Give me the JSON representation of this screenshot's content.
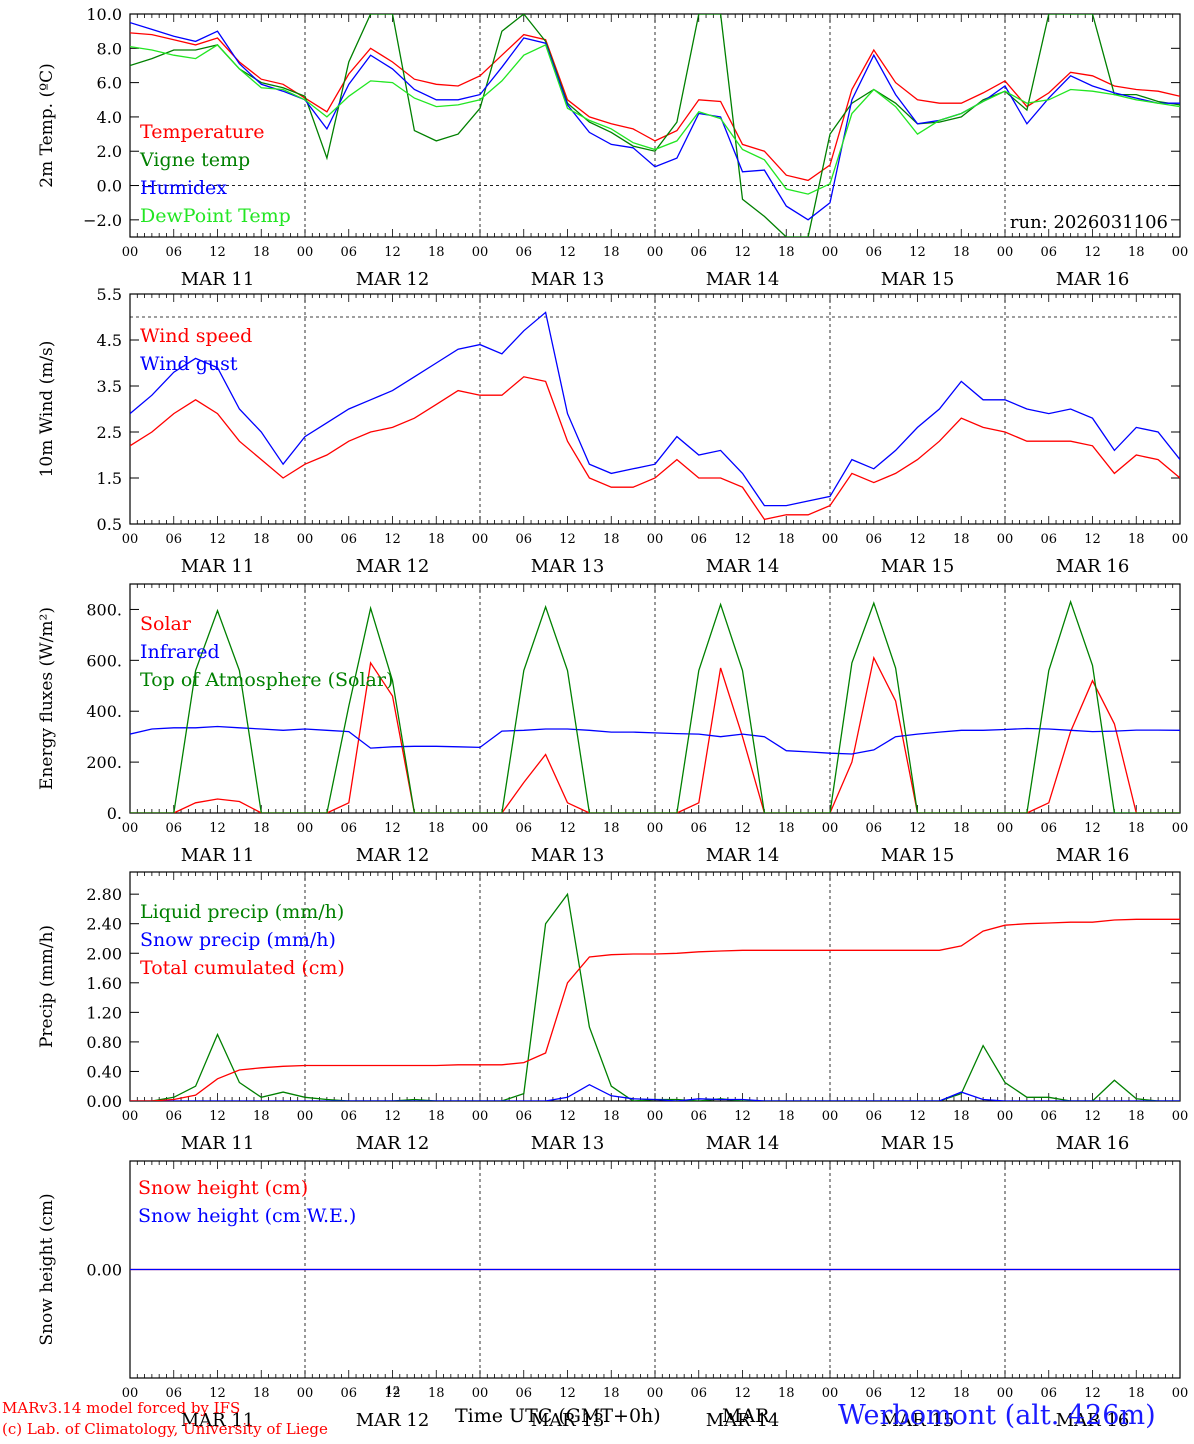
{
  "run_label": "run: 2026031106",
  "footer": {
    "credit_line1": "MARv3.14 model forced by IFS",
    "credit_line2": "(c) Lab. of Climatology, University of Liege",
    "small_hour": "12",
    "time_axis_label": "Time UTC (GMT+0h)",
    "month_label": "MAR",
    "station": "Werbomont (alt. 426m)"
  },
  "x_axis": {
    "hours": [
      0,
      144
    ],
    "tick_labels": [
      "00",
      "06",
      "12",
      "18"
    ],
    "day_labels": [
      "MAR 11",
      "MAR 12",
      "MAR 13",
      "MAR 14",
      "MAR 15",
      "MAR 16"
    ]
  },
  "chart_data": [
    {
      "id": "temperature",
      "type": "line",
      "ylabel": "2m Temp. (ºC)",
      "ylim": [
        -3.0,
        10.0
      ],
      "yticks": [
        -2.0,
        0.0,
        2.0,
        4.0,
        6.0,
        8.0,
        10.0
      ],
      "ytick_labels": [
        "−2.0",
        "0.0",
        "2.0",
        "4.0",
        "6.0",
        "8.0",
        "10.0"
      ],
      "hline": 0.0,
      "hline_label": "",
      "x": [
        0,
        3,
        6,
        9,
        12,
        15,
        18,
        21,
        24,
        27,
        30,
        33,
        36,
        39,
        42,
        45,
        48,
        51,
        54,
        57,
        60,
        63,
        66,
        69,
        72,
        75,
        78,
        81,
        84,
        87,
        90,
        93,
        96,
        99,
        102,
        105,
        108,
        111,
        114,
        117,
        120,
        123,
        126,
        129,
        132,
        135,
        138,
        141,
        144
      ],
      "series": [
        {
          "name": "Temperature",
          "color": "#ff0000",
          "values": [
            8.9,
            8.8,
            8.5,
            8.2,
            8.6,
            7.2,
            6.2,
            5.9,
            5.1,
            4.3,
            6.5,
            8.0,
            7.2,
            6.2,
            5.9,
            5.8,
            6.4,
            7.6,
            8.8,
            8.5,
            5.0,
            4.0,
            3.6,
            3.3,
            2.6,
            3.2,
            5.0,
            4.9,
            2.4,
            2.0,
            0.6,
            0.3,
            1.2,
            5.6,
            7.9,
            6.0,
            5.0,
            4.8,
            4.8,
            5.4,
            6.1,
            4.6,
            5.4,
            6.6,
            6.4,
            5.8,
            5.6,
            5.5,
            5.2
          ]
        },
        {
          "name": "Vigne temp",
          "color": "#008000",
          "values": [
            7.0,
            7.4,
            7.9,
            7.9,
            8.2,
            6.8,
            6.0,
            5.7,
            5.2,
            1.6,
            7.2,
            10.0,
            10.0,
            3.2,
            2.6,
            3.0,
            4.5,
            9.0,
            10.0,
            8.4,
            4.8,
            3.7,
            3.1,
            2.3,
            2.0,
            3.7,
            10.0,
            10.0,
            -0.8,
            -1.8,
            -3.0,
            -3.0,
            3.0,
            4.8,
            5.6,
            4.8,
            3.6,
            3.7,
            4.0,
            5.0,
            5.5,
            4.4,
            10.0,
            10.0,
            10.0,
            5.3,
            5.3,
            4.9,
            4.7
          ]
        },
        {
          "name": "Humidex",
          "color": "#0000ff",
          "values": [
            9.5,
            9.1,
            8.7,
            8.4,
            9.0,
            7.1,
            5.9,
            5.5,
            5.0,
            3.3,
            5.9,
            7.6,
            6.8,
            5.6,
            5.0,
            5.0,
            5.3,
            6.9,
            8.6,
            8.3,
            4.7,
            3.1,
            2.4,
            2.2,
            1.1,
            1.6,
            4.2,
            4.0,
            0.8,
            0.9,
            -1.2,
            -2.0,
            -1.0,
            5.0,
            7.6,
            5.3,
            3.6,
            3.8,
            4.2,
            4.9,
            5.8,
            3.6,
            5.1,
            6.4,
            5.8,
            5.4,
            5.1,
            4.8,
            4.8
          ]
        },
        {
          "name": "DewPoint Temp",
          "color": "#22e622",
          "values": [
            8.1,
            7.9,
            7.6,
            7.4,
            8.2,
            6.8,
            5.7,
            5.6,
            5.0,
            4.0,
            5.2,
            6.1,
            6.0,
            5.1,
            4.6,
            4.7,
            5.0,
            6.1,
            7.6,
            8.2,
            4.5,
            3.8,
            3.3,
            2.5,
            2.1,
            2.6,
            4.3,
            3.9,
            2.1,
            1.5,
            -0.2,
            -0.5,
            0.1,
            4.2,
            5.6,
            4.6,
            3.0,
            3.8,
            4.2,
            4.9,
            5.5,
            4.8,
            5.0,
            5.6,
            5.5,
            5.3,
            5.0,
            4.8,
            4.6
          ]
        }
      ]
    },
    {
      "id": "wind",
      "type": "line",
      "ylabel": "10m Wind (m/s)",
      "ylim": [
        0.5,
        5.5
      ],
      "yticks": [
        0.5,
        1.5,
        2.5,
        3.5,
        4.5,
        5.5
      ],
      "ytick_labels": [
        "0.5",
        "1.5",
        "2.5",
        "3.5",
        "4.5",
        "5.5"
      ],
      "hline": 5.0,
      "x": [
        0,
        3,
        6,
        9,
        12,
        15,
        18,
        21,
        24,
        27,
        30,
        33,
        36,
        39,
        42,
        45,
        48,
        51,
        54,
        57,
        60,
        63,
        66,
        69,
        72,
        75,
        78,
        81,
        84,
        87,
        90,
        93,
        96,
        99,
        102,
        105,
        108,
        111,
        114,
        117,
        120,
        123,
        126,
        129,
        132,
        135,
        138,
        141,
        144
      ],
      "series": [
        {
          "name": "Wind speed",
          "color": "#ff0000",
          "values": [
            2.2,
            2.5,
            2.9,
            3.2,
            2.9,
            2.3,
            1.9,
            1.5,
            1.8,
            2.0,
            2.3,
            2.5,
            2.6,
            2.8,
            3.1,
            3.4,
            3.3,
            3.3,
            3.7,
            3.6,
            2.3,
            1.5,
            1.3,
            1.3,
            1.5,
            1.9,
            1.5,
            1.5,
            1.3,
            0.6,
            0.7,
            0.7,
            0.9,
            1.6,
            1.4,
            1.6,
            1.9,
            2.3,
            2.8,
            2.6,
            2.5,
            2.3,
            2.3,
            2.3,
            2.2,
            1.6,
            2.0,
            1.9,
            1.5
          ]
        },
        {
          "name": "Wind gust",
          "color": "#0000ff",
          "values": [
            2.9,
            3.3,
            3.8,
            4.1,
            3.9,
            3.0,
            2.5,
            1.8,
            2.4,
            2.7,
            3.0,
            3.2,
            3.4,
            3.7,
            4.0,
            4.3,
            4.4,
            4.2,
            4.7,
            5.1,
            2.9,
            1.8,
            1.6,
            1.7,
            1.8,
            2.4,
            2.0,
            2.1,
            1.6,
            0.9,
            0.9,
            1.0,
            1.1,
            1.9,
            1.7,
            2.1,
            2.6,
            3.0,
            3.6,
            3.2,
            3.2,
            3.0,
            2.9,
            3.0,
            2.8,
            2.1,
            2.6,
            2.5,
            1.9
          ]
        }
      ]
    },
    {
      "id": "energy",
      "type": "line",
      "ylabel": "Energy fluxes (W/m²)",
      "ylim": [
        0,
        900
      ],
      "yticks": [
        0,
        200,
        400,
        600,
        800
      ],
      "ytick_labels": [
        "0.",
        "200.",
        "400.",
        "600.",
        "800."
      ],
      "x": [
        0,
        3,
        6,
        9,
        12,
        15,
        18,
        21,
        24,
        27,
        30,
        33,
        36,
        39,
        42,
        45,
        48,
        51,
        54,
        57,
        60,
        63,
        66,
        69,
        72,
        75,
        78,
        81,
        84,
        87,
        90,
        93,
        96,
        99,
        102,
        105,
        108,
        111,
        114,
        117,
        120,
        123,
        126,
        129,
        132,
        135,
        138,
        141,
        144
      ],
      "series": [
        {
          "name": "Solar",
          "color": "#ff0000",
          "values": [
            0,
            0,
            0,
            40,
            55,
            45,
            0,
            0,
            0,
            0,
            40,
            590,
            460,
            0,
            0,
            0,
            0,
            0,
            120,
            230,
            40,
            0,
            0,
            0,
            0,
            0,
            40,
            570,
            300,
            0,
            0,
            0,
            0,
            200,
            610,
            440,
            0,
            0,
            0,
            0,
            0,
            0,
            40,
            320,
            520,
            350,
            0,
            0,
            0
          ]
        },
        {
          "name": "Infrared",
          "color": "#0000ff",
          "values": [
            310,
            330,
            335,
            335,
            340,
            335,
            330,
            325,
            330,
            325,
            320,
            255,
            260,
            262,
            262,
            260,
            258,
            322,
            325,
            330,
            330,
            325,
            318,
            318,
            315,
            312,
            310,
            300,
            310,
            300,
            245,
            240,
            235,
            232,
            248,
            300,
            310,
            318,
            325,
            325,
            328,
            332,
            330,
            325,
            320,
            322,
            326,
            326,
            325
          ]
        },
        {
          "name": "Top of Atmosphere (Solar)",
          "color": "#008000",
          "values": [
            0,
            0,
            0,
            560,
            795,
            560,
            0,
            0,
            0,
            0,
            420,
            805,
            520,
            0,
            0,
            0,
            0,
            0,
            560,
            810,
            560,
            0,
            0,
            0,
            0,
            0,
            560,
            820,
            560,
            0,
            0,
            0,
            0,
            590,
            825,
            570,
            0,
            0,
            0,
            0,
            0,
            0,
            560,
            830,
            580,
            0,
            0,
            0,
            0
          ]
        }
      ]
    },
    {
      "id": "precip",
      "type": "line",
      "ylabel": "Precip (mm/h)",
      "ylim": [
        0.0,
        3.1
      ],
      "yticks": [
        0.0,
        0.4,
        0.8,
        1.2,
        1.6,
        2.0,
        2.4,
        2.8
      ],
      "ytick_labels": [
        "0.00",
        "0.40",
        "0.80",
        "1.20",
        "1.60",
        "2.00",
        "2.40",
        "2.80"
      ],
      "x": [
        0,
        3,
        6,
        9,
        12,
        15,
        18,
        21,
        24,
        27,
        30,
        33,
        36,
        39,
        42,
        45,
        48,
        51,
        54,
        57,
        60,
        63,
        66,
        69,
        72,
        75,
        78,
        81,
        84,
        87,
        90,
        93,
        96,
        99,
        102,
        105,
        108,
        111,
        114,
        117,
        120,
        123,
        126,
        129,
        132,
        135,
        138,
        141,
        144
      ],
      "series": [
        {
          "name": "Liquid precip (mm/h)",
          "color": "#008000",
          "values": [
            0,
            0,
            0.05,
            0.2,
            0.9,
            0.25,
            0.05,
            0.12,
            0.05,
            0.02,
            0,
            0,
            0,
            0.02,
            0,
            0,
            0,
            0,
            0.1,
            2.4,
            2.8,
            1.0,
            0.2,
            0,
            0.02,
            0.02,
            0,
            0.03,
            0,
            0,
            0,
            0,
            0,
            0,
            0,
            0,
            0,
            0,
            0.1,
            0.75,
            0.25,
            0.05,
            0.05,
            0,
            0,
            0.28,
            0.03,
            0,
            0
          ]
        },
        {
          "name": "Snow precip (mm/h)",
          "color": "#0000ff",
          "values": [
            0,
            0,
            0,
            0,
            0,
            0,
            0,
            0,
            0,
            0,
            0,
            0,
            0,
            0,
            0,
            0,
            0,
            0,
            0,
            0,
            0.05,
            0.22,
            0.07,
            0.03,
            0.02,
            0,
            0.03,
            0.02,
            0.02,
            0,
            0,
            0,
            0,
            0,
            0,
            0,
            0,
            0,
            0.12,
            0.02,
            0,
            0,
            0,
            0,
            0,
            0,
            0,
            0,
            0
          ]
        },
        {
          "name": "Total cumulated (cm)",
          "color": "#ff0000",
          "values": [
            0,
            0,
            0.02,
            0.08,
            0.3,
            0.42,
            0.45,
            0.47,
            0.48,
            0.48,
            0.48,
            0.48,
            0.48,
            0.48,
            0.48,
            0.49,
            0.49,
            0.49,
            0.52,
            0.65,
            1.6,
            1.95,
            1.98,
            1.99,
            1.99,
            2.0,
            2.02,
            2.03,
            2.04,
            2.04,
            2.04,
            2.04,
            2.04,
            2.04,
            2.04,
            2.04,
            2.04,
            2.04,
            2.1,
            2.3,
            2.38,
            2.4,
            2.41,
            2.42,
            2.42,
            2.45,
            2.46,
            2.46,
            2.46
          ]
        }
      ]
    },
    {
      "id": "snow",
      "type": "line",
      "ylabel": "Snow height (cm)",
      "ylim": [
        -1.0,
        1.0
      ],
      "yticks": [
        0.0
      ],
      "ytick_labels": [
        "0.00"
      ],
      "x": [
        0,
        144
      ],
      "series": [
        {
          "name": "Snow height (cm)",
          "color": "#ff0000",
          "values": [
            0,
            0
          ]
        },
        {
          "name": "Snow height (cm W.E.)",
          "color": "#0000ff",
          "values": [
            0,
            0
          ]
        }
      ]
    }
  ]
}
